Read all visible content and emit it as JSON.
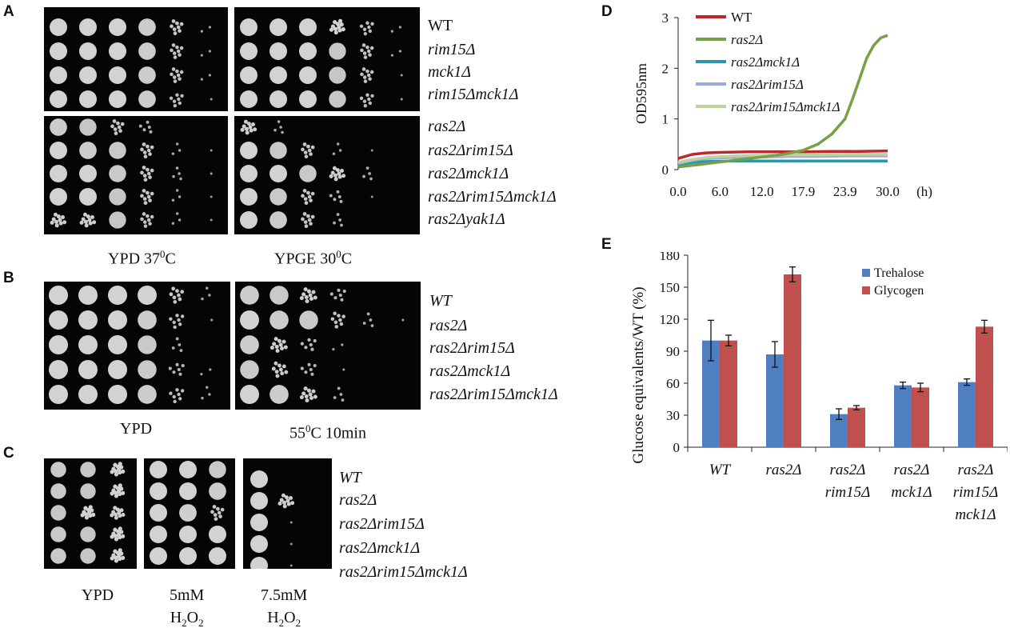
{
  "panels": {
    "a": {
      "letter": "A",
      "strains_top": [
        "WT",
        "rim15Δ",
        "mck1Δ",
        "rim15Δmck1Δ"
      ],
      "strains_bottom": [
        "ras2Δ",
        "ras2Δrim15Δ",
        "ras2Δmck1Δ",
        "ras2Δrim15Δmck1Δ",
        "ras2Δyak1Δ"
      ],
      "conditions": [
        "YPD 37",
        "0",
        "C",
        "YPGE 30",
        "0",
        "C"
      ]
    },
    "b": {
      "letter": "B",
      "strains": [
        "WT",
        "ras2Δ",
        "ras2Δrim15Δ",
        "ras2Δmck1Δ",
        "ras2Δrim15Δmck1Δ"
      ],
      "cond_ypd": "YPD",
      "cond_heat_pre": "55",
      "cond_heat_sup": "0",
      "cond_heat_post": "C 10min"
    },
    "c": {
      "letter": "C",
      "strains": [
        "WT",
        "ras2Δ",
        "ras2Δrim15Δ",
        "ras2Δmck1Δ",
        "ras2Δrim15Δmck1Δ"
      ],
      "cond_ypd": "YPD",
      "cond_5mm": "5mM",
      "cond_75mm": "7.5mM",
      "h": "H",
      "two": "2",
      "o": "O"
    },
    "d": {
      "letter": "D"
    },
    "e": {
      "letter": "E"
    }
  },
  "chart_data": [
    {
      "type": "line",
      "ylabel": "OD595nm",
      "xunit": "(h)",
      "xticks": [
        "0.0",
        "6.0",
        "12.0",
        "17.9",
        "23.9",
        "30.0"
      ],
      "yticks": [
        "0",
        "1",
        "2",
        "3"
      ],
      "xlim": [
        0,
        30
      ],
      "ylim": [
        0,
        3
      ],
      "legend_position": "top-left",
      "series": [
        {
          "name": "WT",
          "color": "#c0272d",
          "x": [
            0,
            2,
            4,
            6,
            10,
            14,
            18,
            22,
            26,
            30
          ],
          "y": [
            0.22,
            0.3,
            0.33,
            0.34,
            0.35,
            0.35,
            0.35,
            0.36,
            0.36,
            0.37
          ]
        },
        {
          "name": "ras2Δ",
          "color": "#78a046",
          "x": [
            0,
            3,
            6,
            9,
            12,
            15,
            17.9,
            20,
            22,
            23.9,
            25,
            26,
            27,
            28,
            29,
            30
          ],
          "y": [
            0.05,
            0.1,
            0.15,
            0.2,
            0.25,
            0.3,
            0.38,
            0.5,
            0.7,
            1.0,
            1.4,
            1.8,
            2.2,
            2.45,
            2.6,
            2.65
          ]
        },
        {
          "name": "ras2Δmck1Δ",
          "color": "#2e94b0",
          "x": [
            0,
            2,
            4,
            8,
            12,
            16,
            20,
            24,
            28,
            30
          ],
          "y": [
            0.1,
            0.14,
            0.16,
            0.17,
            0.17,
            0.17,
            0.17,
            0.17,
            0.17,
            0.17
          ]
        },
        {
          "name": "ras2Δrim15Δ",
          "color": "#9aaad8",
          "x": [
            0,
            2,
            4,
            8,
            12,
            16,
            20,
            24,
            28,
            30
          ],
          "y": [
            0.12,
            0.18,
            0.22,
            0.24,
            0.25,
            0.26,
            0.26,
            0.27,
            0.27,
            0.27
          ]
        },
        {
          "name": "ras2Δrim15Δmck1Δ",
          "color": "#b8d69c",
          "x": [
            0,
            2,
            4,
            8,
            12,
            16,
            20,
            24,
            28,
            30
          ],
          "y": [
            0.14,
            0.2,
            0.24,
            0.27,
            0.28,
            0.29,
            0.29,
            0.3,
            0.3,
            0.3
          ]
        }
      ]
    },
    {
      "type": "bar",
      "ylabel": "Glucose equivalents/WT (%)",
      "yticks": [
        "0",
        "30",
        "60",
        "90",
        "120",
        "150",
        "180"
      ],
      "ylim": [
        0,
        180
      ],
      "legend_position": "top-right",
      "categories": [
        [
          "WT"
        ],
        [
          "ras2Δ"
        ],
        [
          "ras2Δ",
          "rim15Δ"
        ],
        [
          "ras2Δ",
          "mck1Δ"
        ],
        [
          "ras2Δ",
          "rim15Δ",
          "mck1Δ"
        ]
      ],
      "series": [
        {
          "name": "Trehalose",
          "color": "#4f7fc0",
          "values": [
            100,
            87,
            31,
            58,
            61
          ],
          "errors": [
            19,
            12,
            5,
            3,
            3
          ]
        },
        {
          "name": "Glycogen",
          "color": "#c0504d",
          "values": [
            100,
            162,
            37,
            56,
            113
          ],
          "errors": [
            5,
            7,
            2,
            4,
            6
          ]
        }
      ]
    }
  ]
}
